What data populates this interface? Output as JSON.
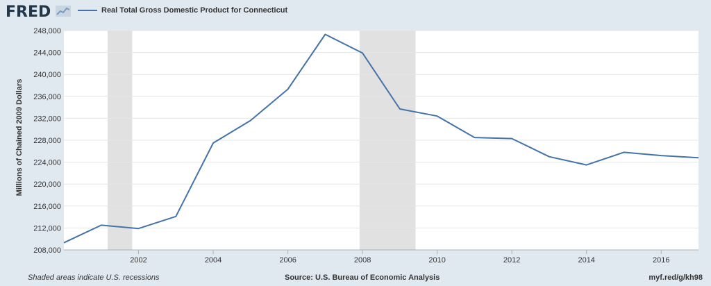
{
  "header": {
    "logo_text": "FRED",
    "logo_icon": "chart-line-icon",
    "legend_label": "Real Total Gross Domestic Product for Connecticut",
    "series_color": "#4572a7"
  },
  "footer": {
    "left": "Shaded areas indicate U.S. recessions",
    "source": "Source: U.S. Bureau of Economic Analysis",
    "link": "myf.red/g/kh98"
  },
  "chart_data": {
    "type": "line",
    "title": "",
    "xlabel": "",
    "ylabel": "Millions of Chained 2009 Dollars",
    "xlim": [
      2000,
      2017
    ],
    "ylim": [
      208000,
      248000
    ],
    "xticks": [
      2002,
      2004,
      2006,
      2008,
      2010,
      2012,
      2014,
      2016
    ],
    "yticks": [
      208000,
      212000,
      216000,
      220000,
      224000,
      228000,
      232000,
      236000,
      240000,
      244000,
      248000
    ],
    "ytick_labels": [
      "208,000",
      "212,000",
      "216,000",
      "220,000",
      "224,000",
      "228,000",
      "232,000",
      "236,000",
      "240,000",
      "244,000",
      "248,000"
    ],
    "recessions": [
      [
        2001.17,
        2001.83
      ],
      [
        2007.92,
        2009.42
      ]
    ],
    "grid": "horizontal",
    "series": [
      {
        "name": "Real Total Gross Domestic Product for Connecticut",
        "color": "#4572a7",
        "x": [
          2000,
          2001,
          2002,
          2003,
          2004,
          2005,
          2006,
          2007,
          2008,
          2009,
          2010,
          2011,
          2012,
          2013,
          2014,
          2015,
          2016,
          2017
        ],
        "values": [
          209300,
          212500,
          211900,
          214100,
          227500,
          231600,
          237300,
          247300,
          243900,
          233700,
          232400,
          228500,
          228300,
          225000,
          223500,
          225800,
          225200,
          224800
        ]
      }
    ]
  }
}
